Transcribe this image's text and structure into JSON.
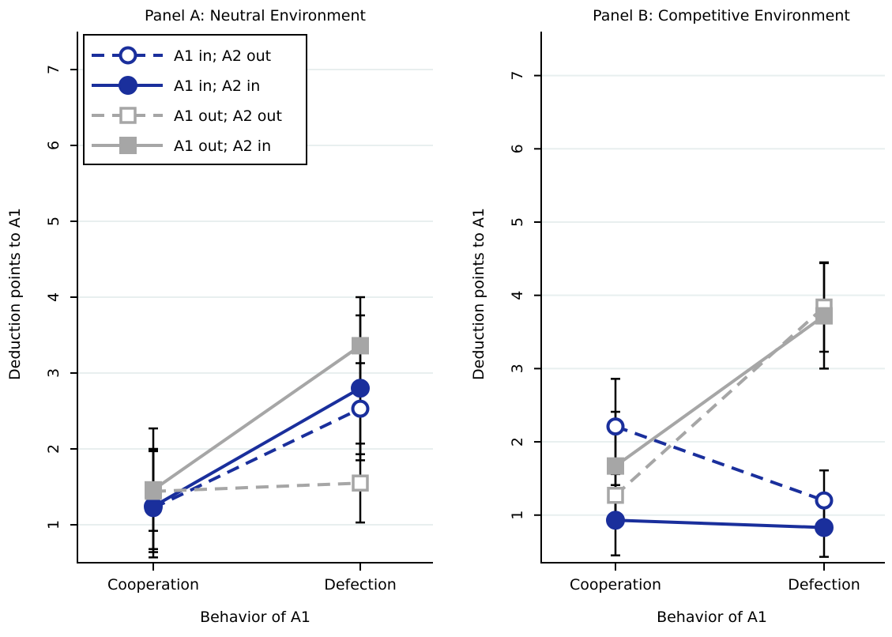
{
  "chart_data": [
    {
      "type": "line",
      "title": "Panel A: Neutral Environment",
      "xlabel": "Behavior of A1",
      "ylabel": "Deduction points to A1",
      "categories": [
        "Cooperation",
        "Defection"
      ],
      "ylim": [
        0.5,
        7.5
      ],
      "yticks": [
        1,
        2,
        3,
        4,
        5,
        6,
        7
      ],
      "grid": "horizontal",
      "legend_position": "top-left",
      "series": [
        {
          "name": "A1 in; A2 out",
          "values": [
            1.22,
            2.53
          ],
          "error_low": [
            0.64,
            1.93
          ],
          "error_high": [
            1.98,
            3.13
          ],
          "color": "#1a2f9c",
          "dashed": true,
          "marker": "circle",
          "filled": false
        },
        {
          "name": "A1 in; A2 in",
          "values": [
            1.24,
            2.8
          ],
          "error_low": [
            0.57,
            1.85
          ],
          "error_high": [
            1.97,
            3.76
          ],
          "color": "#1a2f9c",
          "dashed": false,
          "marker": "circle",
          "filled": true
        },
        {
          "name": "A1 out; A2 out",
          "values": [
            1.44,
            1.55
          ],
          "error_low": [
            0.68,
            1.03
          ],
          "error_high": [
            2.27,
            2.07
          ],
          "color": "#a6a6a6",
          "dashed": true,
          "marker": "square",
          "filled": false
        },
        {
          "name": "A1 out; A2 in",
          "values": [
            1.46,
            3.36
          ],
          "error_low": [
            0.92,
            2.71
          ],
          "error_high": [
            2.0,
            4.0
          ],
          "color": "#a6a6a6",
          "dashed": false,
          "marker": "square",
          "filled": true
        }
      ]
    },
    {
      "type": "line",
      "title": "Panel B: Competitive Environment",
      "xlabel": "Behavior of A1",
      "ylabel": "Deduction points to A1",
      "categories": [
        "Cooperation",
        "Defection"
      ],
      "ylim": [
        0.35,
        7.6
      ],
      "yticks": [
        1,
        2,
        3,
        4,
        5,
        6,
        7
      ],
      "grid": "horizontal",
      "series": [
        {
          "name": "A1 in; A2 out",
          "values": [
            2.21,
            1.2
          ],
          "error_low": [
            1.56,
            0.8
          ],
          "error_high": [
            2.86,
            1.61
          ],
          "color": "#1a2f9c",
          "dashed": true,
          "marker": "circle",
          "filled": false
        },
        {
          "name": "A1 in; A2 in",
          "values": [
            0.93,
            0.83
          ],
          "error_low": [
            0.45,
            0.43
          ],
          "error_high": [
            1.41,
            1.23
          ],
          "color": "#1a2f9c",
          "dashed": false,
          "marker": "circle",
          "filled": true
        },
        {
          "name": "A1 out; A2 out",
          "values": [
            1.27,
            3.84
          ],
          "error_low": [
            0.85,
            3.23
          ],
          "error_high": [
            1.7,
            4.45
          ],
          "color": "#a6a6a6",
          "dashed": true,
          "marker": "square",
          "filled": false
        },
        {
          "name": "A1 out; A2 in",
          "values": [
            1.67,
            3.72
          ],
          "error_low": [
            0.93,
            3.0
          ],
          "error_high": [
            2.41,
            4.44
          ],
          "color": "#a6a6a6",
          "dashed": false,
          "marker": "square",
          "filled": true
        }
      ]
    }
  ]
}
